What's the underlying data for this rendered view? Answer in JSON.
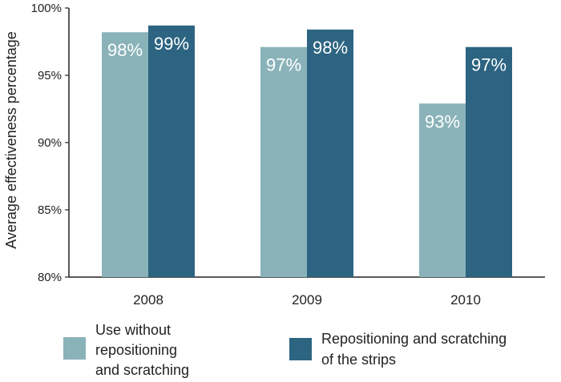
{
  "chart_data": {
    "type": "bar",
    "categories": [
      "2008",
      "2009",
      "2010"
    ],
    "series": [
      {
        "name": "Use without repositioning and scratching",
        "values": [
          98.2,
          97.1,
          92.9
        ],
        "labels": [
          "98%",
          "97%",
          "93%"
        ],
        "color": "#8ab3b9"
      },
      {
        "name": "Repositioning and scratching of the strips",
        "values": [
          98.7,
          98.4,
          97.1
        ],
        "labels": [
          "99%",
          "98%",
          "97%"
        ],
        "color": "#2c6481"
      }
    ],
    "ylabel": "Average effectiveness percentage",
    "ylim": [
      80,
      100
    ],
    "yticks": [
      80,
      85,
      90,
      95,
      100
    ],
    "ytick_labels": [
      "80%",
      "85%",
      "90%",
      "95%",
      "100%"
    ],
    "grid": false,
    "legend_position": "bottom"
  },
  "legend": {
    "series1_lines": [
      "Use without",
      "repositioning",
      "and scratching"
    ],
    "series2_lines": [
      "Repositioning and scratching",
      "of the strips"
    ]
  }
}
